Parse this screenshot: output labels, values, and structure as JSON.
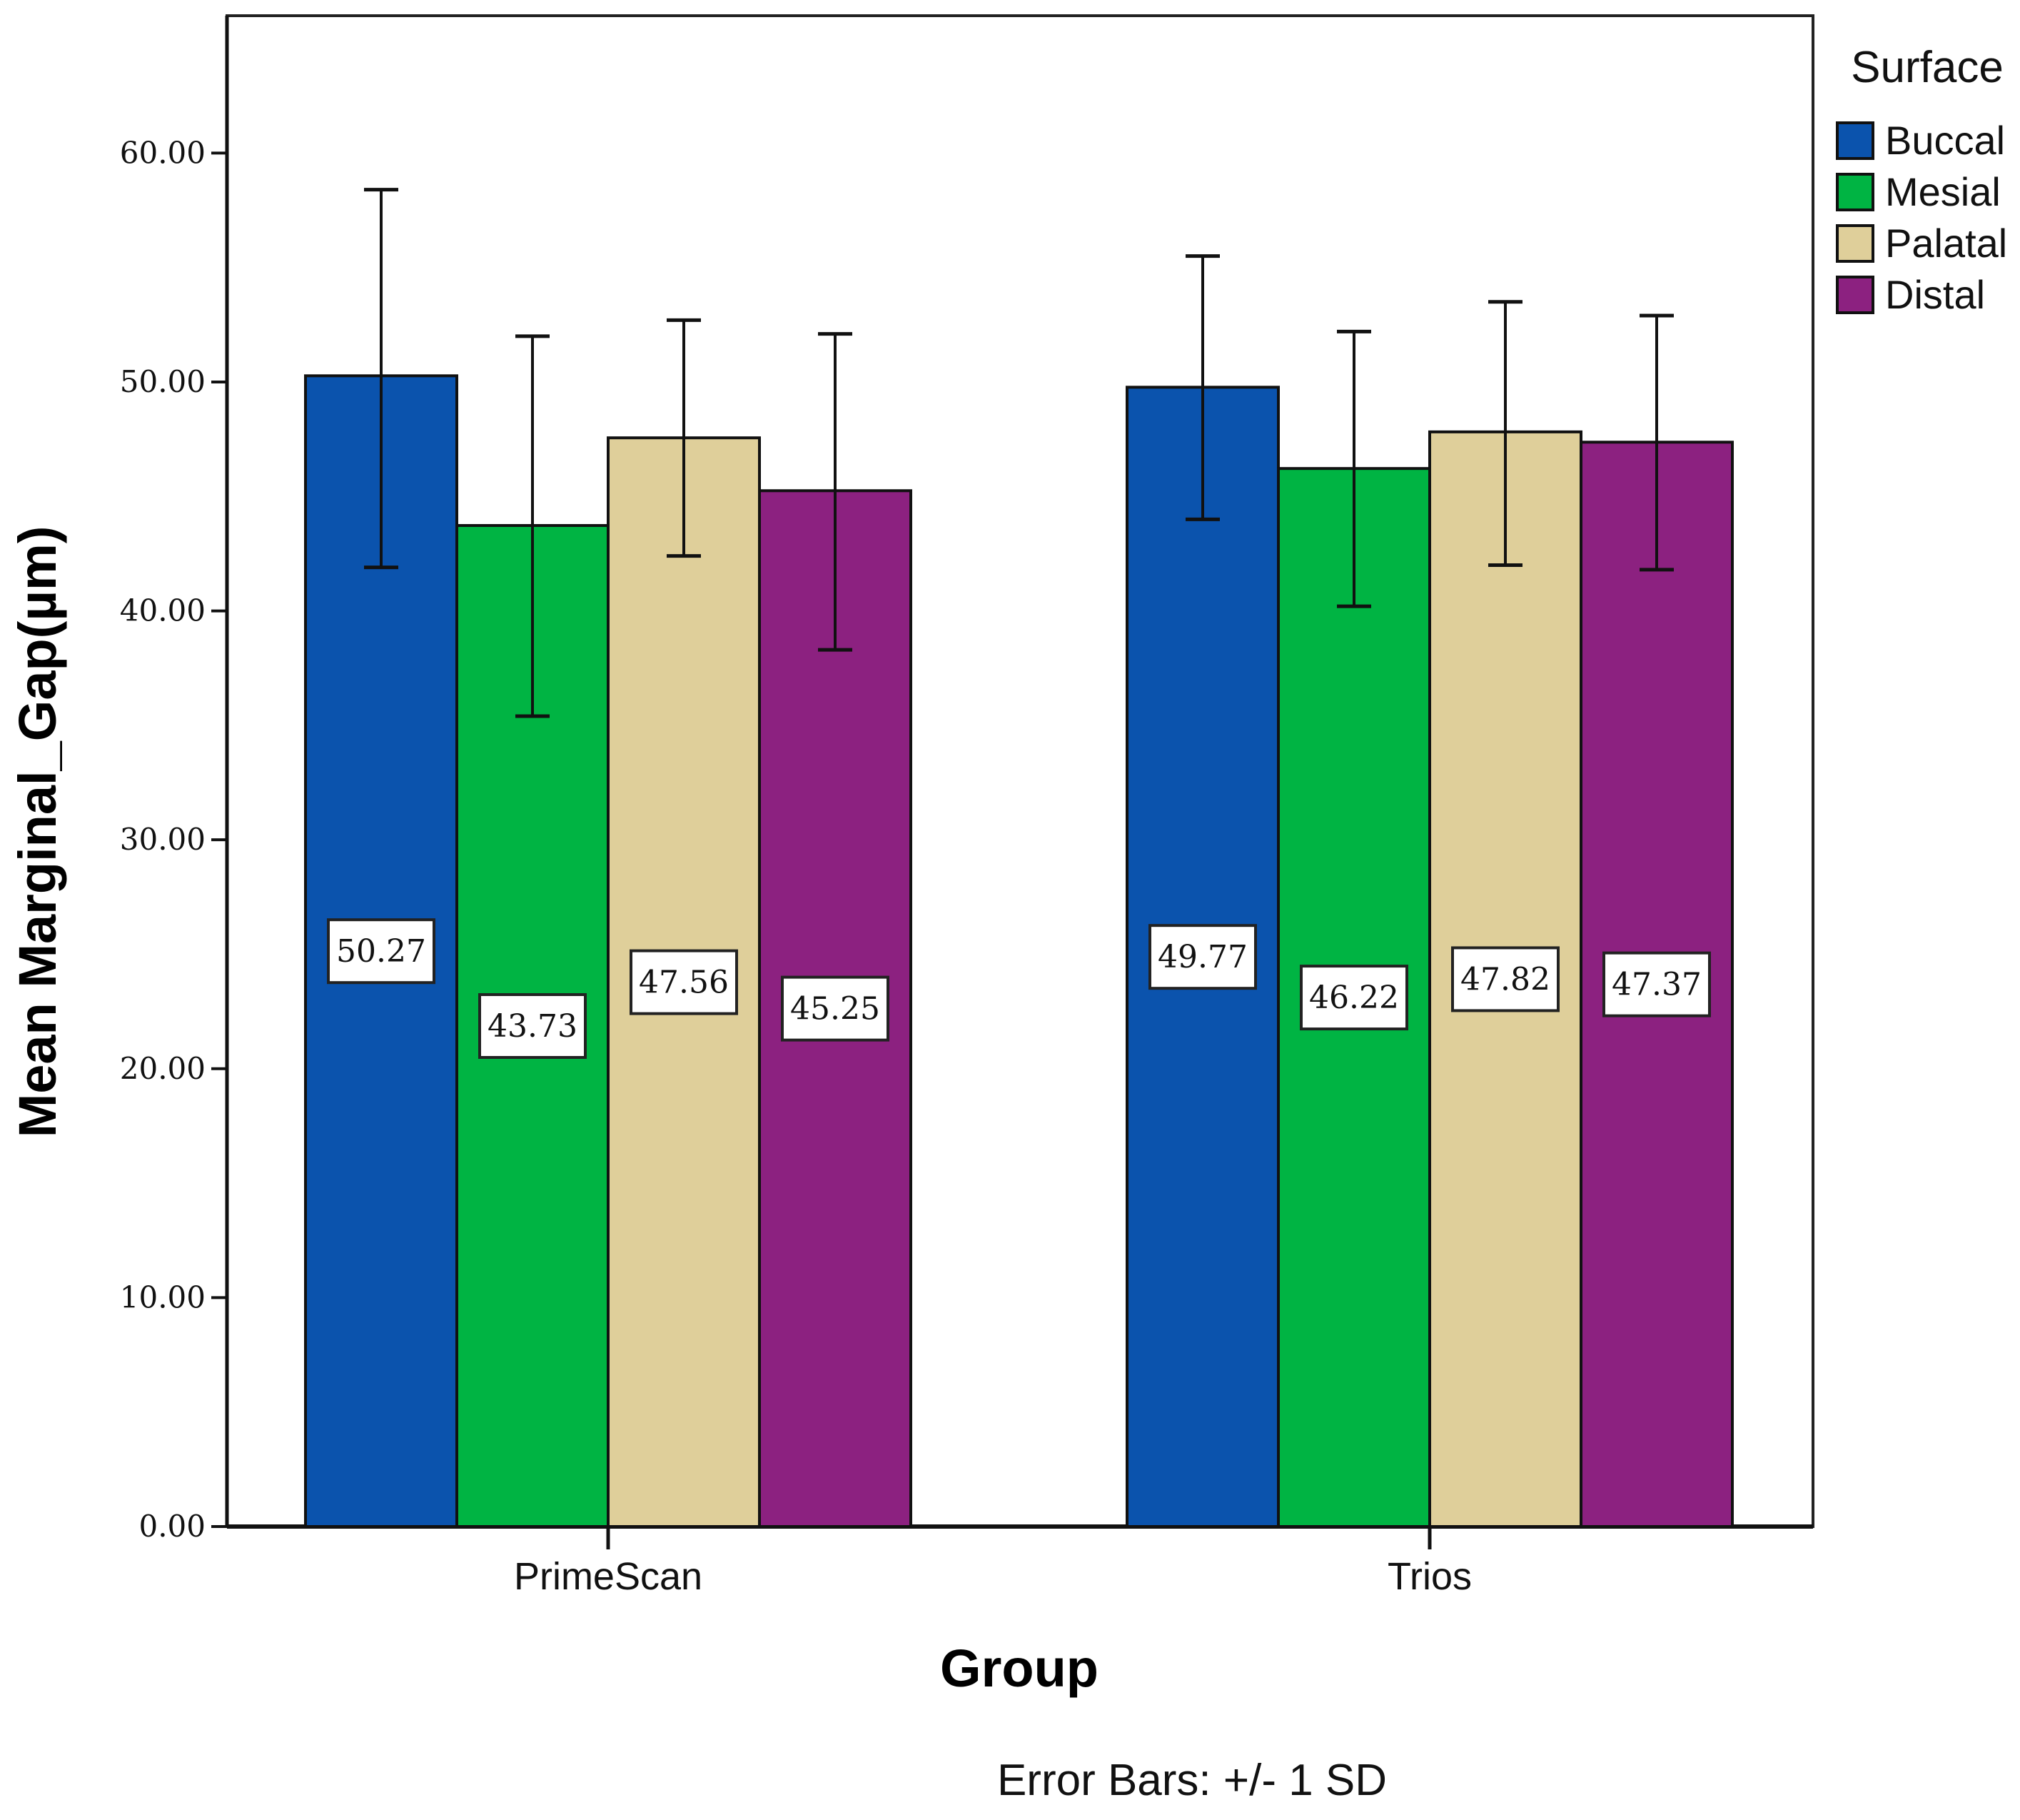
{
  "chart_data": {
    "type": "bar",
    "title": "",
    "xlabel": "Group",
    "ylabel": "Mean Marginal_Gap(µm)",
    "categories": [
      "PrimeScan",
      "Trios"
    ],
    "ylim": [
      0,
      66
    ],
    "yticks": [
      0,
      10,
      20,
      30,
      40,
      50,
      60
    ],
    "ytick_labels": [
      "0.00",
      "10.00",
      "20.00",
      "30.00",
      "40.00",
      "50.00",
      "60.00"
    ],
    "legend_title": "Surface",
    "legend_position": "top-right",
    "series": [
      {
        "name": "Buccal",
        "color": "#0b53ad",
        "values": [
          50.27,
          49.77
        ],
        "labels": [
          "50.27",
          "49.77"
        ],
        "err_low": [
          41.9,
          44.0
        ],
        "err_high": [
          58.4,
          55.5
        ]
      },
      {
        "name": "Mesial",
        "color": "#00b443",
        "values": [
          43.73,
          46.22
        ],
        "labels": [
          "43.73",
          "46.22"
        ],
        "err_low": [
          35.4,
          40.2
        ],
        "err_high": [
          52.0,
          52.2
        ]
      },
      {
        "name": "Palatal",
        "color": "#dfcf9a",
        "values": [
          47.56,
          47.82
        ],
        "labels": [
          "47.56",
          "47.82"
        ],
        "err_low": [
          42.4,
          42.0
        ],
        "err_high": [
          52.7,
          53.5
        ]
      },
      {
        "name": "Distal",
        "color": "#8c2180",
        "values": [
          45.25,
          47.37
        ],
        "labels": [
          "45.25",
          "47.37"
        ],
        "err_low": [
          38.3,
          41.8
        ],
        "err_high": [
          52.1,
          52.9
        ]
      }
    ],
    "error_bars_note": "Error Bars: +/- 1 SD"
  }
}
